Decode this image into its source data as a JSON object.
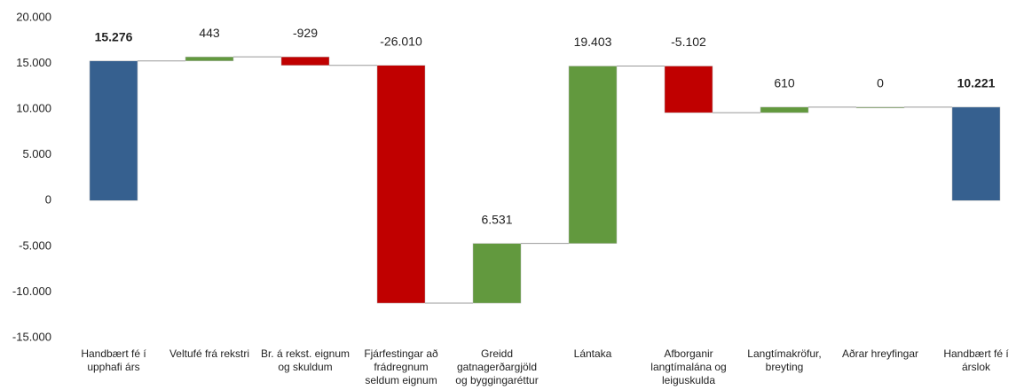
{
  "chart_data": {
    "type": "waterfall",
    "categories": [
      [
        "Handbært fé í",
        "upphafi árs"
      ],
      [
        "Veltufé frá rekstri"
      ],
      [
        "Br. á rekst. eignum",
        "og skuldum"
      ],
      [
        "Fjárfestingar að",
        "frádregnum",
        "seldum eignum"
      ],
      [
        "Greidd",
        "gatnagerðargjöld",
        "og byggingaréttur"
      ],
      [
        "Lántaka"
      ],
      [
        "Afborganir",
        "langtímalána og",
        "leiguskulda"
      ],
      [
        "Langtímakröfur,",
        "breyting"
      ],
      [
        "Aðrar hreyfingar"
      ],
      [
        "Handbært fé í",
        "árslok"
      ]
    ],
    "values": [
      15276,
      443,
      -929,
      -26010,
      6531,
      19403,
      -5102,
      610,
      0,
      10221
    ],
    "value_labels": [
      "15.276",
      "443",
      "-929",
      "-26.010",
      "6.531",
      "19.403",
      "-5.102",
      "610",
      "0",
      "10.221"
    ],
    "kinds": [
      "total",
      "increase",
      "decrease",
      "decrease",
      "increase",
      "increase",
      "decrease",
      "increase",
      "increase",
      "total"
    ],
    "colors": {
      "total": "#36608f",
      "increase": "#62993e",
      "decrease": "#c00000"
    },
    "ylim": [
      -15000,
      20000
    ],
    "yticks": [
      {
        "value": -15000,
        "label": "-15.000"
      },
      {
        "value": -10000,
        "label": "-10.000"
      },
      {
        "value": -5000,
        "label": "-5.000"
      },
      0,
      {
        "value": 5000,
        "label": "5.000"
      },
      {
        "value": 10000,
        "label": "10.000"
      },
      {
        "value": 15000,
        "label": "15.000"
      },
      {
        "value": 20000,
        "label": "20.000"
      }
    ],
    "grid": false
  }
}
